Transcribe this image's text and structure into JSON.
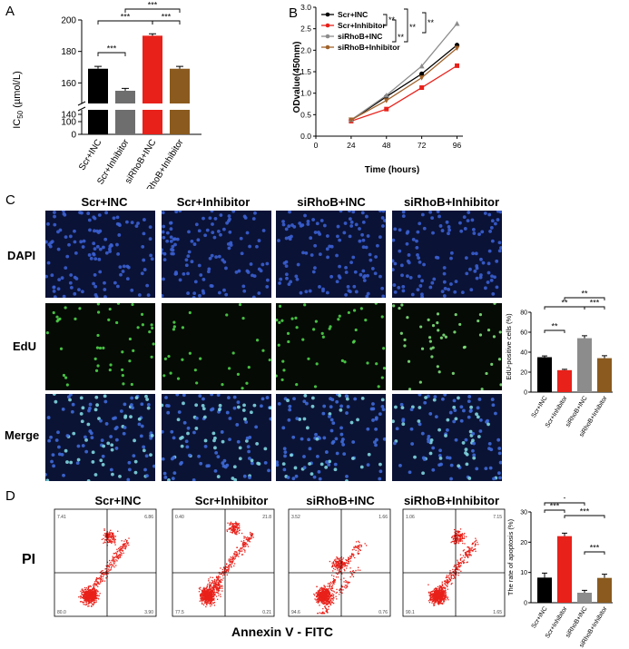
{
  "panel_labels": {
    "a": "A",
    "b": "B",
    "c": "C",
    "d": "D"
  },
  "panelA": {
    "ylabel_main": "IC",
    "ylabel_sub": "50",
    "ylabel_unit": " (µmol/L)",
    "ticks_upper": [
      "200",
      "180",
      "160",
      "140"
    ],
    "ticks_lower": [
      "100",
      "0"
    ],
    "sig": [
      "***",
      "***",
      "***",
      "***"
    ]
  },
  "panelB": {
    "ylabel": "ODvalue(450nm)",
    "xlabel": "Time (hours)",
    "yticks": [
      "0.0",
      "0.5",
      "1.0",
      "1.5",
      "2.0",
      "2.5",
      "3.0"
    ],
    "xticks": [
      "0",
      "24",
      "48",
      "72",
      "96"
    ],
    "sig": [
      "**",
      "**",
      "**",
      "**"
    ]
  },
  "panelC": {
    "headers": [
      "Scr+INC",
      "Scr+Inhibitor",
      "siRhoB+INC",
      "siRhoB+Inhibitor"
    ],
    "rows": [
      "DAPI",
      "EdU",
      "Merge"
    ],
    "bar_ylabel": "EdU-positive cells (%)",
    "yticks": [
      "0",
      "20",
      "40",
      "60",
      "80"
    ],
    "sig": [
      "**",
      "**",
      "***",
      "**"
    ]
  },
  "panelD": {
    "headers": [
      "Scr+INC",
      "Scr+Inhibitor",
      "siRhoB+INC",
      "siRhoB+Inhibitor"
    ],
    "ylabel": "PI",
    "xlabel": "Annexin V - FITC",
    "quadrants": [
      {
        "q1": "7.41",
        "q2": "6.86",
        "q3": "3.90",
        "q4": "80.0"
      },
      {
        "q1": "0.40",
        "q2": "21.8",
        "q3": "0.21",
        "q4": "77.5"
      },
      {
        "q1": "3.52",
        "q2": "1.66",
        "q3": "0.76",
        "q4": "94.6"
      },
      {
        "q1": "1.06",
        "q2": "7.15",
        "q3": "1.65",
        "q4": "90.1"
      }
    ],
    "bar_ylabel": "The rate of apoptosis (%)",
    "yticks": [
      "0",
      "10",
      "20",
      "30"
    ],
    "sig": [
      "*",
      "***",
      "***",
      "***"
    ]
  },
  "chart_data": [
    {
      "type": "bar",
      "categories": [
        "Scr+INC",
        "Scr+Inhibitor",
        "siRhoB+INC",
        "siRhoB+Inhibitor"
      ],
      "values": [
        169,
        155,
        190,
        169
      ],
      "errors": [
        1.5,
        1.5,
        1.2,
        1.5
      ],
      "colors": [
        "#000000",
        "#6e6e6e",
        "#e8211a",
        "#8a5a1e"
      ],
      "ylim": [
        0,
        200
      ],
      "axis_break": [
        100,
        140
      ]
    },
    {
      "type": "line",
      "x": [
        24,
        48,
        72,
        96
      ],
      "series": [
        {
          "name": "Scr+INC",
          "values": [
            0.37,
            0.92,
            1.45,
            2.12
          ],
          "color": "#000000"
        },
        {
          "name": "Scr+Inhibitor",
          "values": [
            0.35,
            0.63,
            1.13,
            1.64
          ],
          "color": "#e8211a"
        },
        {
          "name": "siRhoB+INC",
          "values": [
            0.38,
            0.95,
            1.63,
            2.62
          ],
          "color": "#8c8c8c"
        },
        {
          "name": "siRhoB+Inhibitor",
          "values": [
            0.38,
            0.83,
            1.36,
            2.05
          ],
          "color": "#a0622a"
        }
      ],
      "xlim": [
        0,
        100
      ],
      "ylim": [
        0,
        3.0
      ]
    },
    {
      "type": "bar",
      "categories": [
        "Scr+INC",
        "Scr+Inhibitor",
        "siRhoB+INC",
        "siRhoB+Inhibitor"
      ],
      "values": [
        35,
        22,
        54,
        34
      ],
      "errors": [
        1.2,
        0.8,
        2.5,
        2.5
      ],
      "colors": [
        "#000000",
        "#e8211a",
        "#8c8c8c",
        "#8a5a1e"
      ],
      "ylim": [
        0,
        80
      ]
    },
    {
      "type": "bar",
      "categories": [
        "Scr+INC",
        "Scr+Inhibitor",
        "siRhoB+INC",
        "siRhoB+Inhibitor"
      ],
      "values": [
        8.3,
        22,
        3.3,
        8.2
      ],
      "errors": [
        1.5,
        1.0,
        0.8,
        1.2
      ],
      "colors": [
        "#000000",
        "#e8211a",
        "#8c8c8c",
        "#8a5a1e"
      ],
      "ylim": [
        0,
        30
      ]
    }
  ]
}
